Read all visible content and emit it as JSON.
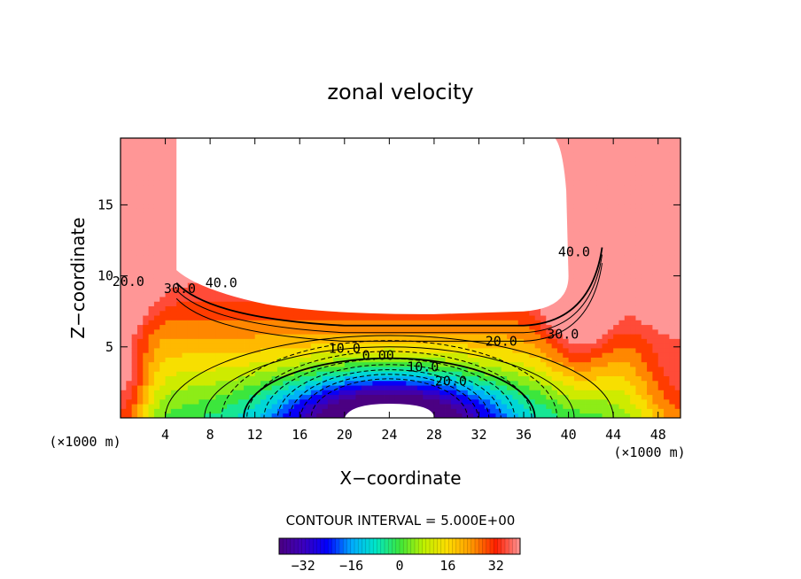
{
  "chart_data": {
    "type": "heatmap",
    "title": "zonal velocity",
    "xlabel": "X−coordinate",
    "ylabel": "Z−coordinate",
    "x_unit_left": "(×1000 m)",
    "x_unit_right": "(×1000 m)",
    "xlim": [
      0,
      50
    ],
    "ylim": [
      0,
      19.7
    ],
    "xticks": [
      4,
      8,
      12,
      16,
      20,
      24,
      28,
      32,
      36,
      40,
      44,
      48
    ],
    "xtick_labels": [
      "4",
      "8",
      "12",
      "16",
      "20",
      "24",
      "28",
      "32",
      "36",
      "40",
      "44",
      "48"
    ],
    "yticks": [
      5,
      10,
      15
    ],
    "ytick_labels": [
      "5",
      "10",
      "15"
    ],
    "contour_interval_text": "CONTOUR INTERVAL = 5.000E+00",
    "contour_labels": [
      {
        "text": "40.0",
        "x": 9,
        "y": 9.5
      },
      {
        "text": "30.0",
        "x": 5.3,
        "y": 9.1
      },
      {
        "text": "20.0",
        "x": 0.7,
        "y": 9.6
      },
      {
        "text": "40.0",
        "x": 40.5,
        "y": 11.7
      },
      {
        "text": "30.0",
        "x": 39.5,
        "y": 5.9
      },
      {
        "text": "20.0",
        "x": 34,
        "y": 5.4
      },
      {
        "text": "10.0",
        "x": 20,
        "y": 4.9
      },
      {
        "text": "0.00",
        "x": 23,
        "y": 4.4
      },
      {
        "text": "10.0",
        "x": 27,
        "y": 3.6
      },
      {
        "text": "20.0",
        "x": 29.5,
        "y": 2.6
      }
    ],
    "colorbar": {
      "range": [
        -40,
        40
      ],
      "ticks": [
        -32,
        -16,
        0,
        16,
        32
      ],
      "tick_labels": [
        "−32",
        "−16",
        "0",
        "16",
        "32"
      ]
    },
    "field_description": {
      "masked_region_top": {
        "x": [
          5,
          40
        ],
        "z": [
          7.3,
          19.7
        ]
      },
      "masked_region_bottom": {
        "x": [
          20,
          28
        ],
        "z": [
          0,
          1
        ]
      },
      "min_value": -40,
      "min_location": {
        "x": 24,
        "z": 0.5
      },
      "max_value": 45
    }
  }
}
